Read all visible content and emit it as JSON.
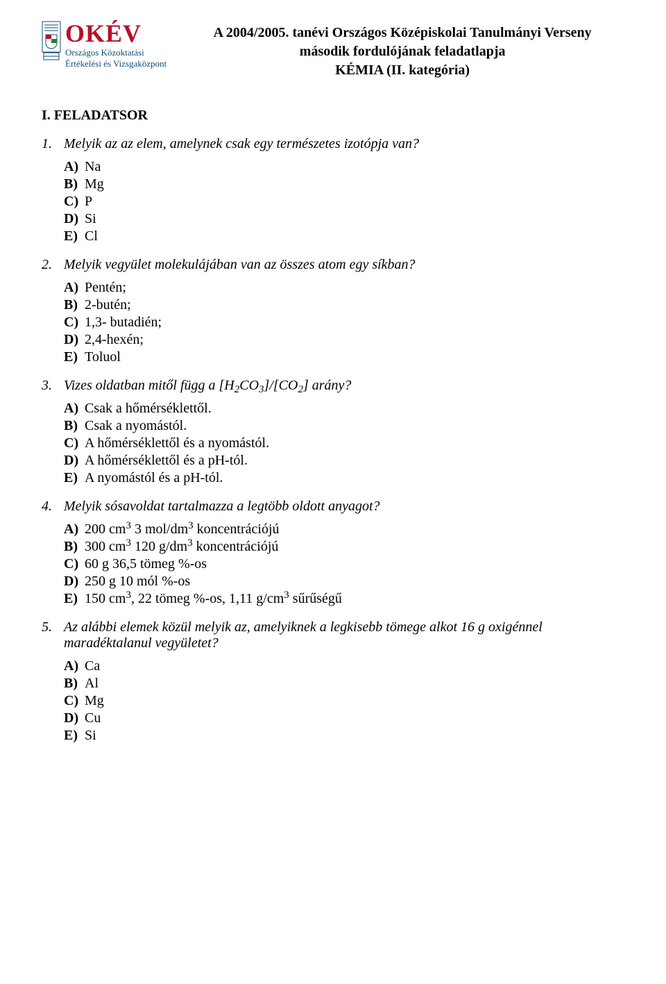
{
  "header": {
    "logo": {
      "brand": "OKÉV",
      "sub1": "Országos Közoktatási",
      "sub2": "Értékelési és Vizsgaközpont",
      "brand_color": "#b7102a",
      "sub_color": "#0b4f7a"
    },
    "title_line1": "A 2004/2005. tanévi Országos Középiskolai Tanulmányi Verseny",
    "title_line2": "második fordulójának feladatlapja",
    "title_line3": "KÉMIA (II. kategória)"
  },
  "section_title": "I. FELADATSOR",
  "questions": [
    {
      "num": "1.",
      "text": "Melyik az az elem, amelynek csak egy természetes izotópja van?",
      "options": [
        {
          "l": "A)",
          "t": "Na"
        },
        {
          "l": "B)",
          "t": "Mg"
        },
        {
          "l": "C)",
          "t": "P"
        },
        {
          "l": "D)",
          "t": "Si"
        },
        {
          "l": "E)",
          "t": "Cl"
        }
      ]
    },
    {
      "num": "2.",
      "text": "Melyik vegyület molekulájában van az összes atom egy síkban?",
      "options": [
        {
          "l": "A)",
          "t": "Pentén;"
        },
        {
          "l": "B)",
          "t": "2-butén;"
        },
        {
          "l": "C)",
          "t": "1,3- butadién;"
        },
        {
          "l": "D)",
          "t": "2,4-hexén;"
        },
        {
          "l": "E)",
          "t": "Toluol"
        }
      ]
    },
    {
      "num": "3.",
      "text_html": "Vizes oldatban mitől függ a [H<sub>2</sub>CO<sub>3</sub>]/[CO<sub>2</sub>] arány?",
      "options": [
        {
          "l": "A)",
          "t": "Csak a hőmérséklettől."
        },
        {
          "l": "B)",
          "t": "Csak a nyomástól."
        },
        {
          "l": "C)",
          "t": "A hőmérséklettől és a nyomástól."
        },
        {
          "l": "D)",
          "t": "A hőmérséklettől és a pH-tól."
        },
        {
          "l": "E)",
          "t": "A nyomástól és a pH-tól."
        }
      ]
    },
    {
      "num": "4.",
      "text": "Melyik sósavoldat tartalmazza a legtöbb oldott anyagot?",
      "options": [
        {
          "l": "A)",
          "t_html": "200 cm<sup>3</sup> 3 mol/dm<sup>3</sup> koncentrációjú"
        },
        {
          "l": "B)",
          "t_html": "300 cm<sup>3</sup> 120 g/dm<sup>3</sup> koncentrációjú"
        },
        {
          "l": "C)",
          "t": "60 g 36,5 tömeg %-os"
        },
        {
          "l": "D)",
          "t": "250 g 10 mól %-os"
        },
        {
          "l": "E)",
          "t_html": "150 cm<sup>3</sup>, 22 tömeg %-os, 1,11 g/cm<sup>3</sup> sűrűségű"
        }
      ]
    },
    {
      "num": "5.",
      "text": "Az alábbi elemek közül melyik az, amelyiknek a legkisebb tömege alkot 16 g oxigénnel maradéktalanul vegyületet?",
      "options": [
        {
          "l": "A)",
          "t": "Ca"
        },
        {
          "l": "B)",
          "t": "Al"
        },
        {
          "l": "C)",
          "t": "Mg"
        },
        {
          "l": "D)",
          "t": "Cu"
        },
        {
          "l": "E)",
          "t": "Si"
        }
      ]
    }
  ],
  "typography": {
    "body_font": "Times New Roman",
    "body_size_pt": 15,
    "title_size_pt": 15,
    "bg_color": "#ffffff",
    "text_color": "#000000"
  }
}
